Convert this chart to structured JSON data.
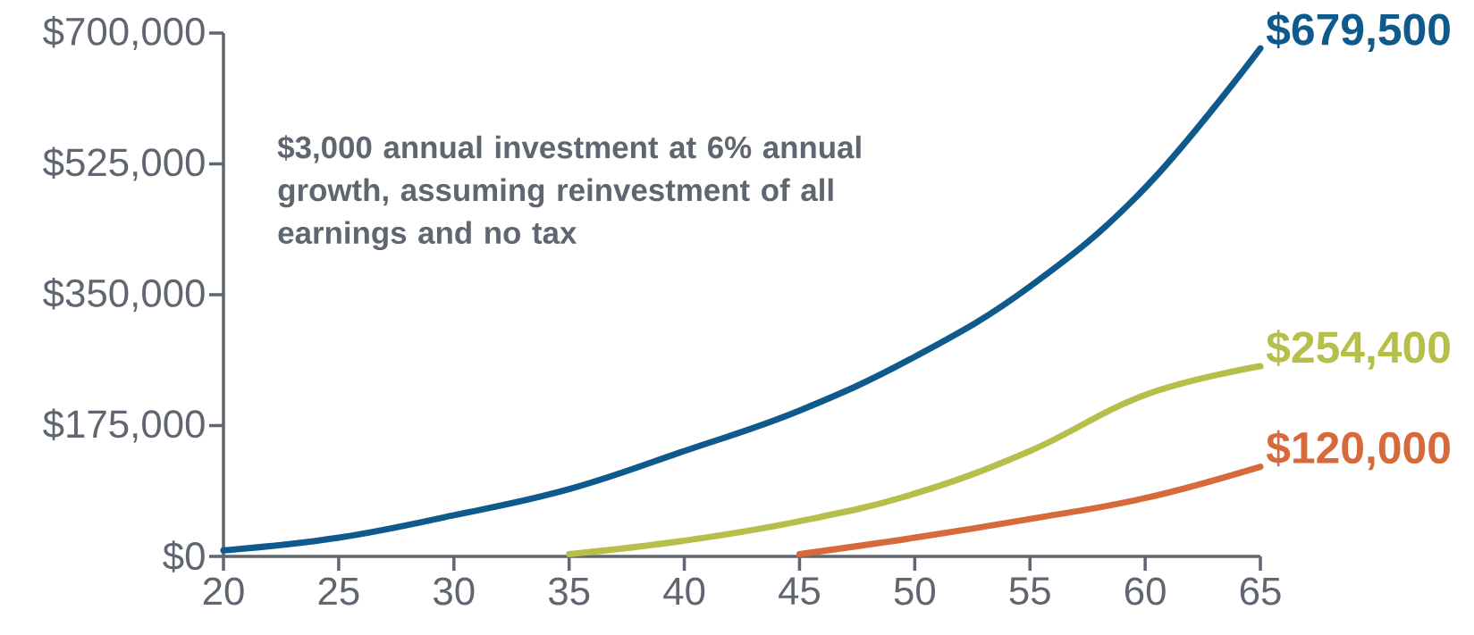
{
  "chart_data": {
    "type": "line",
    "xlim": [
      20,
      65
    ],
    "ylim": [
      0,
      700000
    ],
    "xticks": [
      20,
      25,
      30,
      35,
      40,
      45,
      50,
      55,
      60,
      65
    ],
    "yticks": [
      {
        "value": 0,
        "label": "$0"
      },
      {
        "value": 175000,
        "label": "$175,000"
      },
      {
        "value": 350000,
        "label": "$350,000"
      },
      {
        "value": 525000,
        "label": "$525,000"
      },
      {
        "value": 700000,
        "label": "$700,000"
      }
    ],
    "grid": false,
    "marker": "none",
    "line_style": "solid",
    "annotations": [
      "$3,000 annual investment at  6% annual growth, assuming reinvestment of all earnings and no tax"
    ],
    "series": [
      {
        "color": "#0f5a8c",
        "x": [
          20,
          25,
          30,
          35,
          40,
          45,
          50,
          55,
          60,
          65
        ],
        "values": [
          8000,
          25000,
          55000,
          90000,
          141000,
          195000,
          267000,
          361000,
          493000,
          679500
        ],
        "value_labels": [
          null,
          null,
          null,
          null,
          null,
          null,
          null,
          null,
          null,
          "$679,500"
        ]
      },
      {
        "color": "#b5bf4a",
        "x": [
          35,
          40,
          45,
          50,
          55,
          60,
          65
        ],
        "values": [
          3000,
          21000,
          47000,
          84000,
          141000,
          216000,
          254400
        ],
        "value_labels": [
          null,
          null,
          null,
          null,
          null,
          null,
          "$254,400"
        ]
      },
      {
        "color": "#d8693a",
        "x": [
          45,
          50,
          55,
          60,
          65
        ],
        "values": [
          3000,
          25000,
          50000,
          78000,
          120000
        ],
        "value_labels": [
          null,
          null,
          null,
          null,
          "$120,000"
        ]
      }
    ]
  }
}
